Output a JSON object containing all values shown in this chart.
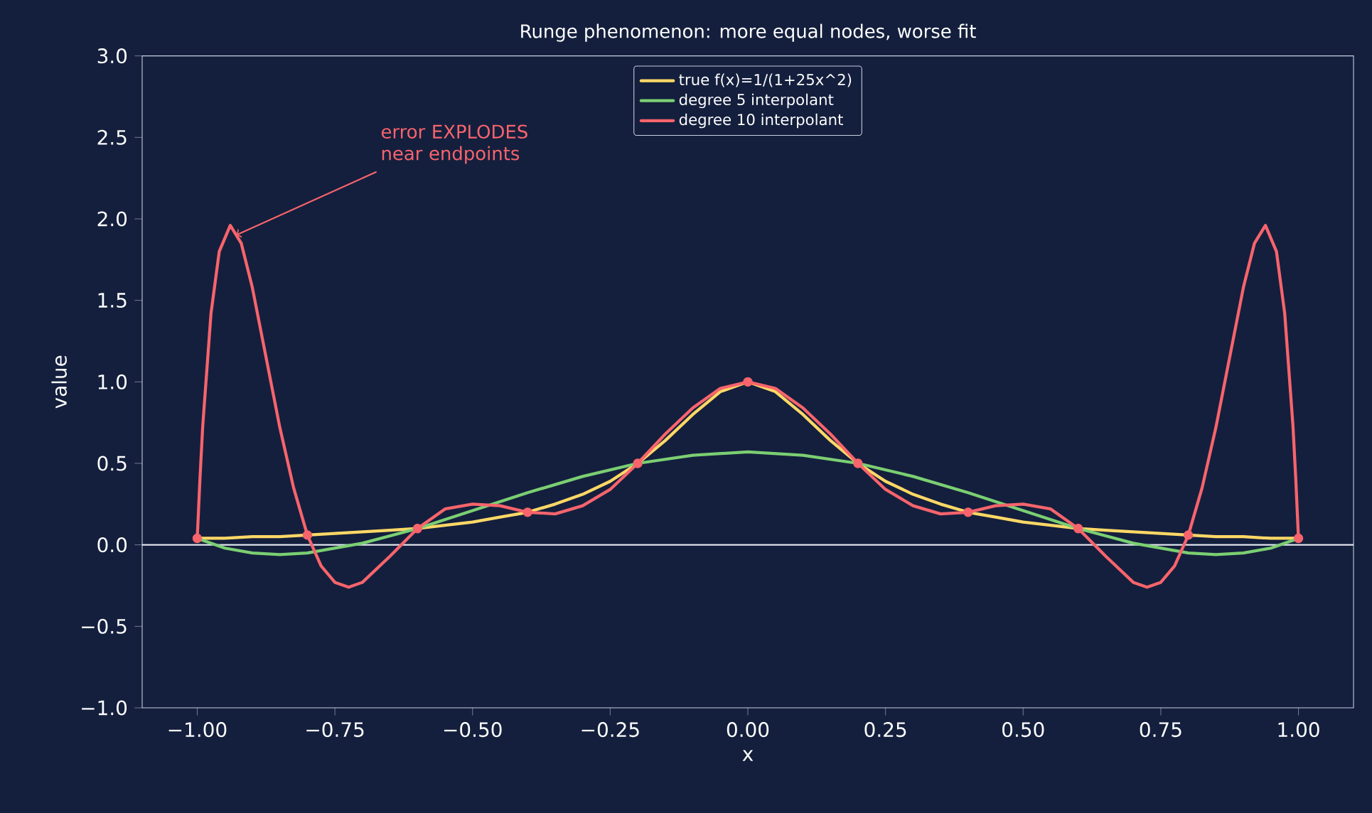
{
  "chart_data": {
    "type": "line",
    "title": "Runge phenomenon: more equal nodes, worse fit",
    "xlabel": "x",
    "ylabel": "value",
    "xlim": [
      -1.1,
      1.1
    ],
    "ylim": [
      -1,
      3
    ],
    "xticks": [
      {
        "value": -1,
        "label": "−1.00"
      },
      {
        "value": -0.75,
        "label": "−0.75"
      },
      {
        "value": -0.5,
        "label": "−0.50"
      },
      {
        "value": -0.25,
        "label": "−0.25"
      },
      {
        "value": 0,
        "label": "0.00"
      },
      {
        "value": 0.25,
        "label": "0.25"
      },
      {
        "value": 0.5,
        "label": "0.50"
      },
      {
        "value": 0.75,
        "label": "0.75"
      },
      {
        "value": 1,
        "label": "1.00"
      }
    ],
    "yticks": [
      {
        "value": -1,
        "label": "−1.0"
      },
      {
        "value": -0.5,
        "label": "−0.5"
      },
      {
        "value": 0,
        "label": "0.0"
      },
      {
        "value": 0.5,
        "label": "0.5"
      },
      {
        "value": 1,
        "label": "1.0"
      },
      {
        "value": 1.5,
        "label": "1.5"
      },
      {
        "value": 2,
        "label": "2.0"
      },
      {
        "value": 2.5,
        "label": "2.5"
      },
      {
        "value": 3,
        "label": "3.0"
      }
    ],
    "grid": false,
    "legend": "top",
    "series": [
      {
        "name": "true f(x)=1/(1+25x^2)",
        "color": "#ffd866",
        "x": [
          -1,
          -0.95,
          -0.9,
          -0.85,
          -0.8,
          -0.75,
          -0.7,
          -0.65,
          -0.6,
          -0.55,
          -0.5,
          -0.45,
          -0.4,
          -0.35,
          -0.3,
          -0.25,
          -0.2,
          -0.15,
          -0.1,
          -0.05,
          0,
          0.05,
          0.1,
          0.15,
          0.2,
          0.25,
          0.3,
          0.35,
          0.4,
          0.45,
          0.5,
          0.55,
          0.6,
          0.65,
          0.7,
          0.75,
          0.8,
          0.85,
          0.9,
          0.95,
          1
        ],
        "values": [
          0.04,
          0.04,
          0.05,
          0.05,
          0.06,
          0.07,
          0.08,
          0.09,
          0.1,
          0.12,
          0.14,
          0.17,
          0.2,
          0.25,
          0.31,
          0.39,
          0.5,
          0.64,
          0.8,
          0.94,
          1,
          0.94,
          0.8,
          0.64,
          0.5,
          0.39,
          0.31,
          0.25,
          0.2,
          0.17,
          0.14,
          0.12,
          0.1,
          0.09,
          0.08,
          0.07,
          0.06,
          0.05,
          0.05,
          0.04,
          0.04
        ]
      },
      {
        "name": "degree 5 interpolant",
        "color": "#7bcf72",
        "x": [
          -1,
          -0.95,
          -0.9,
          -0.85,
          -0.8,
          -0.7,
          -0.6,
          -0.5,
          -0.4,
          -0.3,
          -0.2,
          -0.1,
          0,
          0.1,
          0.2,
          0.3,
          0.4,
          0.5,
          0.6,
          0.7,
          0.8,
          0.85,
          0.9,
          0.95,
          1
        ],
        "values": [
          0.04,
          -0.02,
          -0.05,
          -0.06,
          -0.05,
          0.01,
          0.1,
          0.21,
          0.32,
          0.42,
          0.5,
          0.55,
          0.57,
          0.55,
          0.5,
          0.42,
          0.32,
          0.21,
          0.1,
          0.01,
          -0.05,
          -0.06,
          -0.05,
          -0.02,
          0.04
        ]
      },
      {
        "name": "degree 10 interpolant",
        "color": "#f7646c",
        "x": [
          -1,
          -0.995,
          -0.99,
          -0.975,
          -0.96,
          -0.94,
          -0.92,
          -0.9,
          -0.875,
          -0.85,
          -0.825,
          -0.8,
          -0.775,
          -0.75,
          -0.725,
          -0.7,
          -0.65,
          -0.6,
          -0.55,
          -0.5,
          -0.45,
          -0.4,
          -0.35,
          -0.3,
          -0.25,
          -0.2,
          -0.15,
          -0.1,
          -0.05,
          0,
          0.05,
          0.1,
          0.15,
          0.2,
          0.25,
          0.3,
          0.35,
          0.4,
          0.45,
          0.5,
          0.55,
          0.6,
          0.65,
          0.7,
          0.725,
          0.75,
          0.775,
          0.8,
          0.825,
          0.85,
          0.875,
          0.9,
          0.92,
          0.94,
          0.96,
          0.975,
          0.99,
          0.995,
          1
        ],
        "values": [
          0.04,
          0.41,
          0.73,
          1.42,
          1.8,
          1.96,
          1.85,
          1.58,
          1.15,
          0.72,
          0.35,
          0.06,
          -0.13,
          -0.23,
          -0.26,
          -0.23,
          -0.07,
          0.1,
          0.22,
          0.25,
          0.24,
          0.2,
          0.19,
          0.24,
          0.34,
          0.5,
          0.68,
          0.84,
          0.96,
          1,
          0.96,
          0.84,
          0.68,
          0.5,
          0.34,
          0.24,
          0.19,
          0.2,
          0.24,
          0.25,
          0.22,
          0.1,
          -0.07,
          -0.23,
          -0.26,
          -0.23,
          -0.13,
          0.06,
          0.35,
          0.72,
          1.15,
          1.58,
          1.85,
          1.96,
          1.8,
          1.42,
          0.73,
          0.41,
          0.04
        ]
      },
      {
        "type": "scatter",
        "marker": "circle",
        "color": "#f7646c",
        "x": [
          -1,
          -0.8,
          -0.6,
          -0.4,
          -0.2,
          0,
          0.2,
          0.4,
          0.6,
          0.8,
          1
        ],
        "values": [
          0.04,
          0.06,
          0.1,
          0.2,
          0.5,
          1,
          0.5,
          0.2,
          0.1,
          0.06,
          0.04
        ]
      }
    ],
    "ref_lines": [
      {
        "axis": "y",
        "value": 0,
        "color": "#e8ecf4"
      }
    ],
    "annotations": [
      {
        "text": "error EXPLODES near endpoints",
        "x": -0.93,
        "y": 1.9
      }
    ]
  }
}
